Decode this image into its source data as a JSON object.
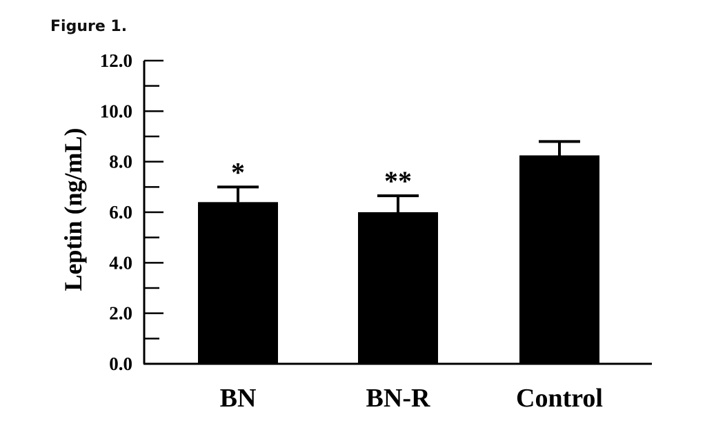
{
  "figure": {
    "label": "Figure 1."
  },
  "chart_data": {
    "type": "bar",
    "title": "",
    "xlabel": "",
    "ylabel": "Leptin (ng/mL)",
    "ylim": [
      0,
      12
    ],
    "grid": false,
    "categories": [
      "BN",
      "BN-R",
      "Control"
    ],
    "values": [
      6.4,
      6.0,
      8.25
    ],
    "errors": [
      0.6,
      0.65,
      0.55
    ],
    "annotations": [
      "*",
      "**",
      ""
    ],
    "y_ticks": [
      0,
      2,
      4,
      6,
      8,
      10,
      12
    ],
    "y_tick_labels": [
      "0.0",
      "2.0",
      "4.0",
      "6.0",
      "8.0",
      "10.0",
      "12.0"
    ],
    "bar_color": "#000000"
  }
}
